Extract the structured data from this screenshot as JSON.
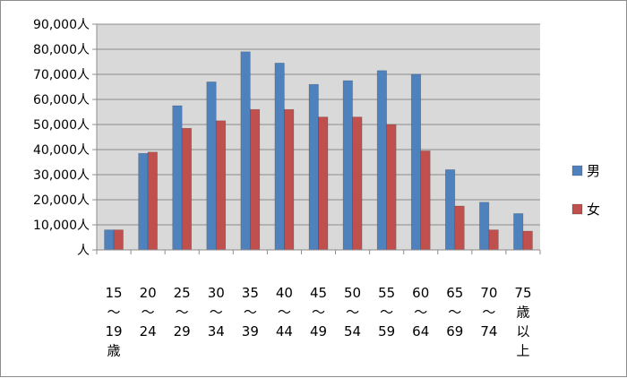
{
  "chart_data": {
    "type": "bar",
    "categories": [
      [
        "15",
        "～",
        "19",
        "歳"
      ],
      [
        "20",
        "～",
        "24"
      ],
      [
        "25",
        "～",
        "29"
      ],
      [
        "30",
        "～",
        "34"
      ],
      [
        "35",
        "～",
        "39"
      ],
      [
        "40",
        "～",
        "44"
      ],
      [
        "45",
        "～",
        "49"
      ],
      [
        "50",
        "～",
        "54"
      ],
      [
        "55",
        "～",
        "59"
      ],
      [
        "60",
        "～",
        "64"
      ],
      [
        "65",
        "～",
        "69"
      ],
      [
        "70",
        "～",
        "74"
      ],
      [
        "75",
        "歳",
        "以",
        "上"
      ]
    ],
    "series": [
      {
        "name": "男",
        "color": "#4f81bd",
        "values": [
          8000,
          38500,
          57500,
          67000,
          79000,
          74500,
          66000,
          67500,
          71500,
          70000,
          32000,
          19000,
          14500
        ]
      },
      {
        "name": "女",
        "color": "#c0504d",
        "values": [
          8000,
          39000,
          48500,
          51500,
          56000,
          56000,
          53000,
          53000,
          50000,
          39500,
          17500,
          8000,
          7500
        ]
      }
    ],
    "ylim": [
      0,
      90000
    ],
    "ytick_labels": [
      "人",
      "10,000人",
      "20,000人",
      "30,000人",
      "40,000人",
      "50,000人",
      "60,000人",
      "70,000人",
      "80,000人",
      "90,000人"
    ],
    "title": "",
    "xlabel": "",
    "ylabel": "",
    "grid": true,
    "legend_position": "right"
  }
}
